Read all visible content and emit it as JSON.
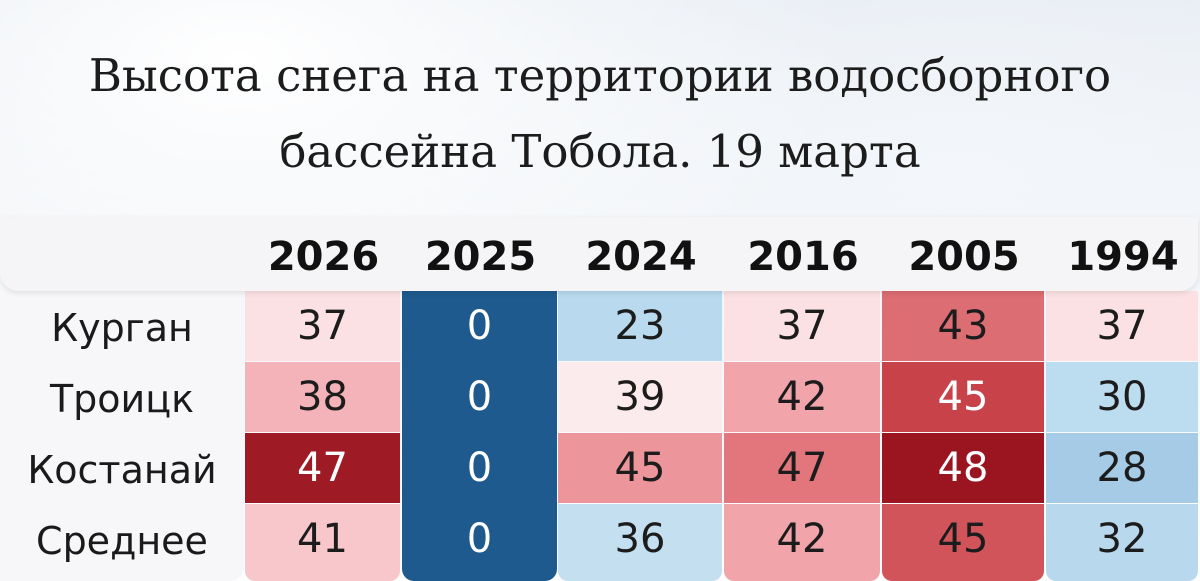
{
  "chart_data": {
    "type": "table",
    "title": "Высота снега на территории водосборного бассейна Тобола. 19 марта",
    "columns": [
      "2026",
      "2025",
      "2024",
      "2016",
      "2005",
      "1994"
    ],
    "rows": [
      {
        "label": "Курган",
        "values": [
          37,
          0,
          23,
          37,
          43,
          37
        ]
      },
      {
        "label": "Троицк",
        "values": [
          38,
          0,
          39,
          42,
          45,
          30
        ]
      },
      {
        "label": "Костанай",
        "values": [
          47,
          0,
          45,
          47,
          48,
          28
        ]
      },
      {
        "label": "Среднее",
        "values": [
          41,
          0,
          36,
          42,
          45,
          32
        ]
      }
    ],
    "cell_colors": [
      [
        "#fbe1e3",
        "#1e5a8e",
        "#b9daee",
        "#fbe1e3",
        "#dc6d72",
        "#fbe1e3"
      ],
      [
        "#f4b3b8",
        "#1e5a8e",
        "#fcebec",
        "#f1a5ab",
        "#c84249",
        "#bcdcef"
      ],
      [
        "#9e1a25",
        "#1e5a8e",
        "#ec959b",
        "#e2767c",
        "#9b1521",
        "#a6cbe6"
      ],
      [
        "#f7c7cb",
        "#1e5a8e",
        "#c3dff0",
        "#f1a5ab",
        "#d1545b",
        "#b7d8ed"
      ]
    ],
    "dark_text_color": "#1c1c1c",
    "light_text_color": "#ffffff",
    "dark_cells": [
      [
        false,
        true,
        false,
        false,
        false,
        false
      ],
      [
        false,
        true,
        false,
        false,
        true,
        false
      ],
      [
        true,
        true,
        false,
        false,
        true,
        false
      ],
      [
        false,
        true,
        false,
        false,
        false,
        false
      ]
    ]
  }
}
